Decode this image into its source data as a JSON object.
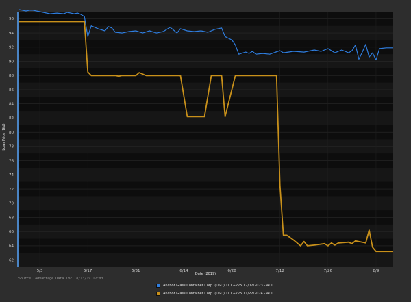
{
  "chart_data": {
    "type": "line",
    "xlabel": "Date (2019)",
    "ylabel": "Loan Price (Bid)",
    "x_ticks": [
      "5/3",
      "5/17",
      "5/31",
      "6/14",
      "6/28",
      "7/12",
      "7/26",
      "8/9"
    ],
    "y_ticks": [
      62,
      64,
      66,
      68,
      70,
      72,
      74,
      76,
      78,
      80,
      82,
      84,
      86,
      88,
      90,
      92,
      94,
      96
    ],
    "ylim": [
      61,
      97
    ],
    "xlim": [
      "2019-04-27",
      "2019-08-14"
    ],
    "grid": true,
    "legend_position": "bottom-center",
    "series": [
      {
        "name": "Anchor Glass Container Corp. (USD) TL L+275 12/07/2023 - ADI",
        "color": "#2f7ee0",
        "points": [
          [
            "2019-04-27",
            97.3
          ],
          [
            "2019-04-29",
            97.1
          ],
          [
            "2019-04-30",
            97.2
          ],
          [
            "2019-05-01",
            97.2
          ],
          [
            "2019-05-03",
            97.0
          ],
          [
            "2019-05-06",
            96.7
          ],
          [
            "2019-05-08",
            96.8
          ],
          [
            "2019-05-10",
            96.7
          ],
          [
            "2019-05-11",
            96.9
          ],
          [
            "2019-05-13",
            96.7
          ],
          [
            "2019-05-14",
            96.8
          ],
          [
            "2019-05-15",
            96.6
          ],
          [
            "2019-05-16",
            96.3
          ],
          [
            "2019-05-17",
            93.5
          ],
          [
            "2019-05-18",
            95.0
          ],
          [
            "2019-05-20",
            94.6
          ],
          [
            "2019-05-22",
            94.3
          ],
          [
            "2019-05-23",
            94.9
          ],
          [
            "2019-05-24",
            94.7
          ],
          [
            "2019-05-25",
            94.1
          ],
          [
            "2019-05-27",
            94.0
          ],
          [
            "2019-05-29",
            94.2
          ],
          [
            "2019-05-31",
            94.3
          ],
          [
            "2019-06-02",
            94.0
          ],
          [
            "2019-06-04",
            94.3
          ],
          [
            "2019-06-06",
            94.0
          ],
          [
            "2019-06-08",
            94.2
          ],
          [
            "2019-06-10",
            94.8
          ],
          [
            "2019-06-12",
            94.0
          ],
          [
            "2019-06-13",
            94.6
          ],
          [
            "2019-06-15",
            94.3
          ],
          [
            "2019-06-17",
            94.2
          ],
          [
            "2019-06-19",
            94.3
          ],
          [
            "2019-06-21",
            94.1
          ],
          [
            "2019-06-23",
            94.5
          ],
          [
            "2019-06-25",
            94.7
          ],
          [
            "2019-06-26",
            93.5
          ],
          [
            "2019-06-28",
            93.0
          ],
          [
            "2019-06-29",
            92.3
          ],
          [
            "2019-06-30",
            91.0
          ],
          [
            "2019-07-02",
            91.3
          ],
          [
            "2019-07-03",
            91.1
          ],
          [
            "2019-07-04",
            91.4
          ],
          [
            "2019-07-05",
            91.0
          ],
          [
            "2019-07-07",
            91.1
          ],
          [
            "2019-07-09",
            91.0
          ],
          [
            "2019-07-12",
            91.5
          ],
          [
            "2019-07-13",
            91.2
          ],
          [
            "2019-07-16",
            91.4
          ],
          [
            "2019-07-19",
            91.3
          ],
          [
            "2019-07-22",
            91.6
          ],
          [
            "2019-07-24",
            91.4
          ],
          [
            "2019-07-26",
            91.8
          ],
          [
            "2019-07-28",
            91.2
          ],
          [
            "2019-07-30",
            91.6
          ],
          [
            "2019-08-01",
            91.2
          ],
          [
            "2019-08-02",
            91.5
          ],
          [
            "2019-08-03",
            92.3
          ],
          [
            "2019-08-04",
            90.3
          ],
          [
            "2019-08-05",
            91.3
          ],
          [
            "2019-08-06",
            92.4
          ],
          [
            "2019-08-07",
            90.6
          ],
          [
            "2019-08-08",
            91.2
          ],
          [
            "2019-08-09",
            90.2
          ],
          [
            "2019-08-10",
            91.8
          ],
          [
            "2019-08-12",
            91.9
          ],
          [
            "2019-08-14",
            91.9
          ]
        ]
      },
      {
        "name": "Anchor Glass Container Corp. (USD) TL L+775 11/22/2024 - ADI",
        "color": "#c8901a",
        "points": [
          [
            "2019-04-27",
            95.6
          ],
          [
            "2019-05-16",
            95.6
          ],
          [
            "2019-05-17",
            88.5
          ],
          [
            "2019-05-18",
            88.0
          ],
          [
            "2019-05-25",
            88.0
          ],
          [
            "2019-05-26",
            87.9
          ],
          [
            "2019-05-27",
            88.0
          ],
          [
            "2019-05-31",
            88.0
          ],
          [
            "2019-06-01",
            88.4
          ],
          [
            "2019-06-03",
            88.0
          ],
          [
            "2019-06-13",
            88.0
          ],
          [
            "2019-06-15",
            82.2
          ],
          [
            "2019-06-20",
            82.2
          ],
          [
            "2019-06-22",
            88.0
          ],
          [
            "2019-06-25",
            88.0
          ],
          [
            "2019-06-26",
            82.2
          ],
          [
            "2019-06-29",
            88.0
          ],
          [
            "2019-07-11",
            88.0
          ],
          [
            "2019-07-12",
            72.5
          ],
          [
            "2019-07-13",
            65.5
          ],
          [
            "2019-07-14",
            65.5
          ],
          [
            "2019-07-16",
            64.8
          ],
          [
            "2019-07-18",
            64.0
          ],
          [
            "2019-07-19",
            64.6
          ],
          [
            "2019-07-20",
            64.0
          ],
          [
            "2019-07-22",
            64.1
          ],
          [
            "2019-07-25",
            64.3
          ],
          [
            "2019-07-26",
            64.0
          ],
          [
            "2019-07-27",
            64.4
          ],
          [
            "2019-07-28",
            64.1
          ],
          [
            "2019-07-29",
            64.4
          ],
          [
            "2019-08-01",
            64.5
          ],
          [
            "2019-08-02",
            64.3
          ],
          [
            "2019-08-03",
            64.7
          ],
          [
            "2019-08-04",
            64.6
          ],
          [
            "2019-08-06",
            64.4
          ],
          [
            "2019-08-07",
            66.2
          ],
          [
            "2019-08-08",
            63.8
          ],
          [
            "2019-08-09",
            63.2
          ],
          [
            "2019-08-14",
            63.2
          ]
        ]
      }
    ]
  },
  "source_text": "Source: Advantage Data Inc. 8/13/19 17:03"
}
